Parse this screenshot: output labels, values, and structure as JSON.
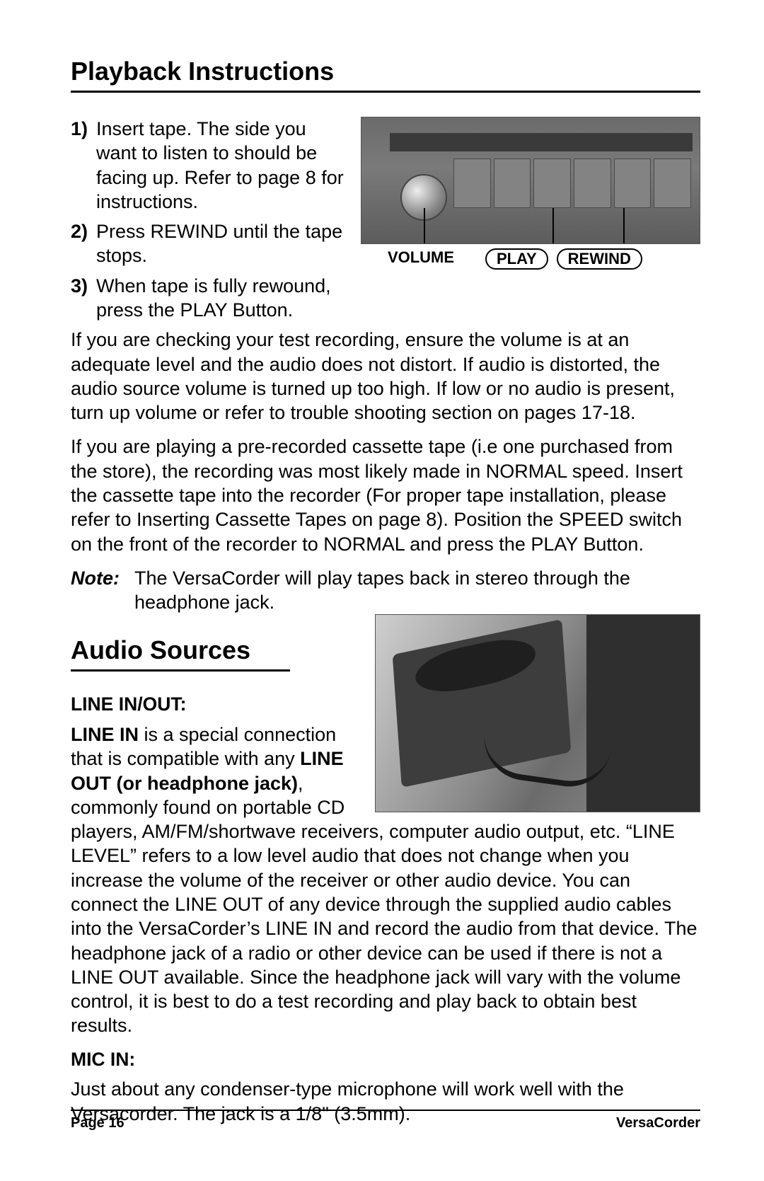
{
  "title_playback": "Playback Instructions",
  "steps": {
    "s1_num": "1)",
    "s1": "Insert tape. The side you want to listen to should be facing up. Refer to page 8 for instructions.",
    "s2_num": "2)",
    "s2": "Press REWIND until the tape stops.",
    "s3_num": "3)",
    "s3": "When tape is fully rewound, press the PLAY Button."
  },
  "fig1": {
    "label_volume": "VOLUME",
    "label_play": "PLAY",
    "label_rewind": "REWIND"
  },
  "para_check": "If you are checking your test recording, ensure the volume is at an adequate level and the audio does not distort. If audio is distorted, the audio source volume is turned up too high. If low or no audio is present, turn up volume or refer to trouble shooting section on pages 17-18.",
  "para_prerec": "If you are playing a pre-recorded cassette tape (i.e one purchased from the store), the recording was most likely made in NORMAL speed. Insert the cassette tape into the recorder (For proper tape installation, please refer to Inserting Cassette Tapes on page 8). Position the SPEED switch on the front of the recorder to NORMAL and press the PLAY Button.",
  "note_label": "Note:",
  "note_text": "The VersaCorder will play tapes back in stereo through the headphone jack.",
  "title_audio": "Audio Sources",
  "line_head": "LINE IN/OUT:",
  "line_p": {
    "a": "LINE IN",
    "b": " is a special connection that is compatible with any ",
    "c": "LINE OUT (or headphone jack)",
    "d": ", commonly found on portable CD players, AM/FM/shortwave receivers, computer audio output, etc. “LINE LEVEL” refers to a low level audio that does not change when you increase the volume of the receiver or other audio device. You can connect the LINE OUT of any device through the supplied audio cables into the VersaCorder’s LINE IN and record the audio from that device. The headphone jack of a radio or other device can be used if there is not a LINE OUT available. Since the headphone jack will vary with the volume control, it is best to do a test recording and play back to obtain best results."
  },
  "mic_head": "MIC IN:",
  "mic_text": "Just about any condenser-type microphone will work well with the Versacorder. The jack is a 1/8\" (3.5mm).",
  "footer": {
    "page": "Page 16",
    "product": "VersaCorder"
  },
  "colors": {
    "text": "#000000",
    "rule": "#000000",
    "bg": "#ffffff",
    "photo_gray_dark": "#3d3d3d",
    "photo_gray_light": "#8a8a8a"
  },
  "typography": {
    "title_size_pt": 27,
    "body_size_pt": 20,
    "label_size_pt": 16,
    "footer_size_pt": 15,
    "family": "Arial/Helvetica"
  }
}
